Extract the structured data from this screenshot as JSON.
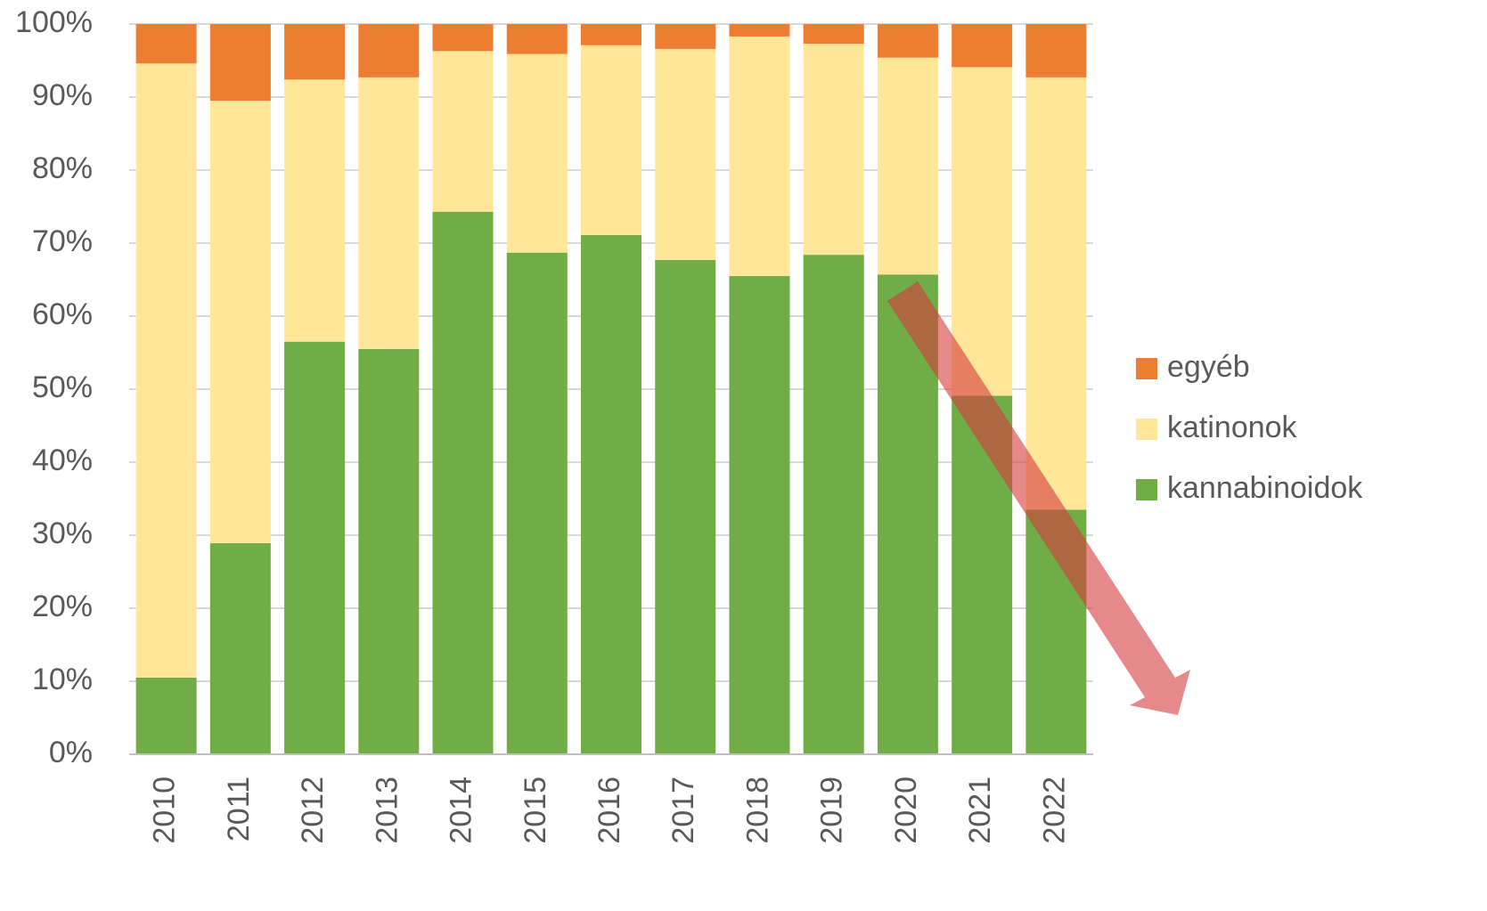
{
  "chart_data": {
    "type": "stacked_bar",
    "categories": [
      "2010",
      "2011",
      "2012",
      "2013",
      "2014",
      "2015",
      "2016",
      "2017",
      "2018",
      "2019",
      "2020",
      "2021",
      "2022"
    ],
    "series": [
      {
        "name": "kannabinoidok",
        "color": "#70ad47",
        "values": [
          10.5,
          28.9,
          56.5,
          55.5,
          74.3,
          68.7,
          71.1,
          67.7,
          65.5,
          68.4,
          65.7,
          49.1,
          33.5
        ]
      },
      {
        "name": "katinonok",
        "color": "#ffe699",
        "values": [
          84.1,
          60.6,
          35.9,
          37.2,
          22.0,
          27.2,
          26.0,
          28.9,
          32.8,
          28.9,
          29.7,
          45.0,
          59.2
        ]
      },
      {
        "name": "egyéb",
        "color": "#ed7d31",
        "values": [
          5.4,
          10.5,
          7.6,
          7.3,
          3.7,
          4.1,
          2.9,
          3.4,
          1.7,
          2.7,
          4.6,
          5.9,
          7.3
        ]
      }
    ],
    "ylim": [
      0,
      100
    ],
    "yticks": [
      {
        "value": 0,
        "label": "0%"
      },
      {
        "value": 10,
        "label": "10%"
      },
      {
        "value": 20,
        "label": "20%"
      },
      {
        "value": 30,
        "label": "30%"
      },
      {
        "value": 40,
        "label": "40%"
      },
      {
        "value": 50,
        "label": "50%"
      },
      {
        "value": 60,
        "label": "60%"
      },
      {
        "value": 70,
        "label": "70%"
      },
      {
        "value": 80,
        "label": "80%"
      },
      {
        "value": 90,
        "label": "90%"
      },
      {
        "value": 100,
        "label": "100%"
      }
    ],
    "grid": true,
    "legend": "right"
  }
}
